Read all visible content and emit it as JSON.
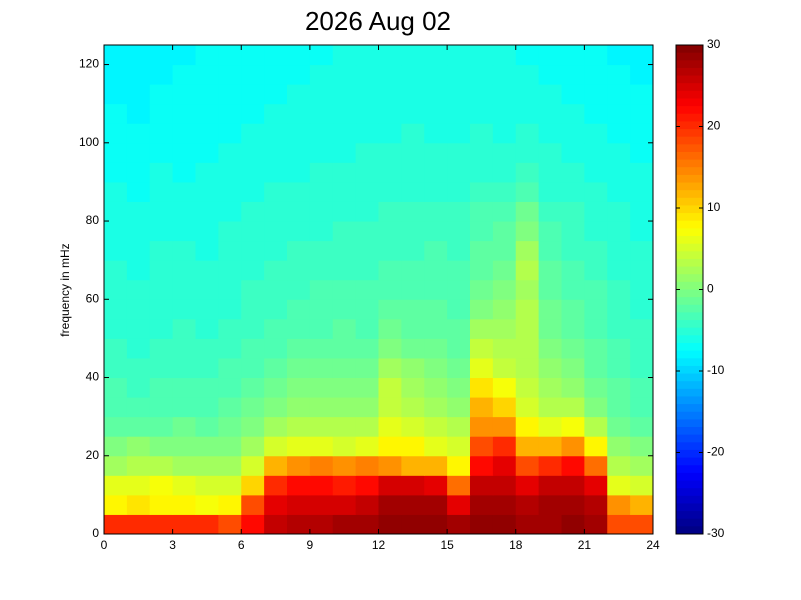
{
  "chart_data": {
    "type": "heatmap",
    "title": "2026 Aug 02",
    "ylabel": "frequency in mHz",
    "xlim": [
      0,
      24
    ],
    "xticks": [
      0,
      3,
      6,
      9,
      12,
      15,
      18,
      21,
      24
    ],
    "ylim": [
      0,
      125
    ],
    "yticks": [
      0,
      20,
      40,
      60,
      80,
      100,
      120
    ],
    "clim": [
      -30,
      30
    ],
    "cticks": [
      -30,
      -20,
      -10,
      0,
      10,
      20,
      30
    ],
    "colormap": "jet",
    "x": [
      0.5,
      1.5,
      2.5,
      3.5,
      4.5,
      5.5,
      6.5,
      7.5,
      8.5,
      9.5,
      10.5,
      11.5,
      12.5,
      13.5,
      14.5,
      15.5,
      16.5,
      17.5,
      18.5,
      19.5,
      20.5,
      21.5,
      22.5,
      23.5
    ],
    "y": [
      2.5,
      7.5,
      12.5,
      17.5,
      22.5,
      27.5,
      32.5,
      37.5,
      42.5,
      47.5,
      52.5,
      57.5,
      62.5,
      67.5,
      72.5,
      77.5,
      82.5,
      87.5,
      92.5,
      97.5,
      102.5,
      107.5,
      112.5,
      117.5,
      122.5
    ],
    "z": [
      [
        20,
        20,
        20,
        20,
        20,
        18,
        22,
        26,
        27,
        27,
        28,
        28,
        29,
        29,
        29,
        28,
        29,
        29,
        28,
        28,
        29,
        28,
        18,
        18
      ],
      [
        8,
        9,
        8,
        8,
        7,
        8,
        18,
        24,
        25,
        25,
        25,
        26,
        28,
        28,
        28,
        24,
        28,
        28,
        27,
        28,
        28,
        27,
        14,
        12
      ],
      [
        6,
        6,
        7,
        6,
        5,
        5,
        10,
        20,
        22,
        22,
        21,
        22,
        25,
        25,
        24,
        16,
        26,
        26,
        24,
        26,
        26,
        24,
        6,
        5
      ],
      [
        2,
        3,
        3,
        2,
        2,
        2,
        5,
        12,
        14,
        15,
        14,
        15,
        14,
        12,
        12,
        8,
        22,
        24,
        18,
        20,
        22,
        16,
        3,
        2
      ],
      [
        0,
        1,
        0,
        0,
        0,
        0,
        2,
        5,
        6,
        6,
        5,
        6,
        8,
        8,
        6,
        5,
        18,
        20,
        12,
        12,
        14,
        8,
        1,
        0
      ],
      [
        -2,
        -2,
        -2,
        -1,
        -2,
        -1,
        0,
        2,
        3,
        3,
        3,
        3,
        6,
        5,
        4,
        3,
        14,
        14,
        8,
        6,
        7,
        3,
        -1,
        -2
      ],
      [
        -3,
        -3,
        -3,
        -3,
        -3,
        -2,
        -1,
        0,
        1,
        1,
        1,
        1,
        4,
        3,
        2,
        1,
        12,
        10,
        5,
        3,
        3,
        0,
        -2,
        -3
      ],
      [
        -3,
        -4,
        -3,
        -3,
        -3,
        -3,
        -2,
        -1,
        0,
        0,
        0,
        0,
        4,
        2,
        1,
        0,
        9,
        7,
        4,
        2,
        1,
        -1,
        -2,
        -3
      ],
      [
        -4,
        -4,
        -4,
        -4,
        -4,
        -3,
        -3,
        -2,
        -1,
        -1,
        -1,
        -1,
        2,
        1,
        0,
        -1,
        6,
        4,
        3,
        1,
        0,
        -2,
        -3,
        -4
      ],
      [
        -4,
        -5,
        -4,
        -4,
        -4,
        -4,
        -3,
        -3,
        -2,
        -2,
        -2,
        -2,
        0,
        -1,
        -1,
        -2,
        4,
        3,
        3,
        0,
        -1,
        -2,
        -3,
        -4
      ],
      [
        -5,
        -5,
        -5,
        -4,
        -5,
        -4,
        -4,
        -3,
        -3,
        -3,
        -2,
        -3,
        -1,
        -2,
        -2,
        -2,
        2,
        2,
        3,
        -1,
        -2,
        -3,
        -4,
        -4
      ],
      [
        -5,
        -5,
        -5,
        -5,
        -5,
        -5,
        -4,
        -4,
        -3,
        -3,
        -3,
        -3,
        -2,
        -2,
        -2,
        -3,
        0,
        1,
        3,
        -1,
        -2,
        -3,
        -4,
        -5
      ],
      [
        -5,
        -5,
        -5,
        -5,
        -5,
        -5,
        -4,
        -4,
        -4,
        -3,
        -3,
        -3,
        -3,
        -3,
        -3,
        -3,
        -1,
        0,
        2,
        -2,
        -3,
        -3,
        -4,
        -5
      ],
      [
        -5,
        -6,
        -5,
        -5,
        -5,
        -5,
        -5,
        -4,
        -4,
        -4,
        -4,
        -4,
        -3,
        -3,
        -3,
        -3,
        -2,
        -1,
        3,
        -2,
        -3,
        -4,
        -5,
        -5
      ],
      [
        -6,
        -6,
        -5,
        -5,
        -6,
        -5,
        -5,
        -5,
        -4,
        -4,
        -4,
        -4,
        -4,
        -4,
        -3,
        -4,
        -2,
        -2,
        2,
        -3,
        -4,
        -4,
        -5,
        -5
      ],
      [
        -6,
        -6,
        -6,
        -6,
        -6,
        -5,
        -5,
        -5,
        -5,
        -5,
        -4,
        -4,
        -4,
        -4,
        -4,
        -4,
        -3,
        -2,
        0,
        -3,
        -4,
        -5,
        -5,
        -6
      ],
      [
        -6,
        -6,
        -6,
        -6,
        -6,
        -6,
        -5,
        -5,
        -5,
        -5,
        -5,
        -5,
        -4,
        -4,
        -4,
        -4,
        -3,
        -3,
        -1,
        -4,
        -4,
        -5,
        -5,
        -6
      ],
      [
        -6,
        -7,
        -6,
        -6,
        -6,
        -6,
        -6,
        -5,
        -5,
        -5,
        -5,
        -5,
        -5,
        -5,
        -5,
        -5,
        -4,
        -4,
        -3,
        -5,
        -5,
        -5,
        -6,
        -6
      ],
      [
        -7,
        -7,
        -6,
        -7,
        -6,
        -6,
        -6,
        -6,
        -6,
        -5,
        -5,
        -5,
        -5,
        -5,
        -5,
        -5,
        -5,
        -5,
        -4,
        -5,
        -5,
        -6,
        -6,
        -6
      ],
      [
        -7,
        -7,
        -7,
        -7,
        -7,
        -6,
        -6,
        -6,
        -6,
        -6,
        -6,
        -5,
        -5,
        -5,
        -5,
        -5,
        -5,
        -5,
        -5,
        -5,
        -6,
        -6,
        -6,
        -7
      ],
      [
        -7,
        -7,
        -7,
        -7,
        -7,
        -7,
        -6,
        -6,
        -6,
        -6,
        -6,
        -6,
        -6,
        -5,
        -6,
        -6,
        -5,
        -6,
        -5,
        -6,
        -6,
        -6,
        -7,
        -7
      ],
      [
        -7,
        -8,
        -7,
        -7,
        -7,
        -7,
        -7,
        -6,
        -6,
        -6,
        -6,
        -6,
        -6,
        -6,
        -6,
        -6,
        -6,
        -6,
        -6,
        -6,
        -6,
        -7,
        -7,
        -7
      ],
      [
        -8,
        -8,
        -7,
        -7,
        -7,
        -7,
        -7,
        -7,
        -6,
        -6,
        -6,
        -6,
        -6,
        -6,
        -6,
        -6,
        -6,
        -6,
        -6,
        -6,
        -7,
        -7,
        -7,
        -7
      ],
      [
        -8,
        -8,
        -8,
        -7,
        -7,
        -7,
        -7,
        -7,
        -7,
        -6,
        -6,
        -6,
        -6,
        -6,
        -6,
        -6,
        -6,
        -6,
        -6,
        -7,
        -7,
        -7,
        -7,
        -8
      ],
      [
        -8,
        -8,
        -8,
        -8,
        -7,
        -7,
        -7,
        -7,
        -7,
        -7,
        -6,
        -6,
        -6,
        -6,
        -6,
        -6,
        -6,
        -6,
        -7,
        -7,
        -7,
        -7,
        -8,
        -8
      ]
    ]
  }
}
